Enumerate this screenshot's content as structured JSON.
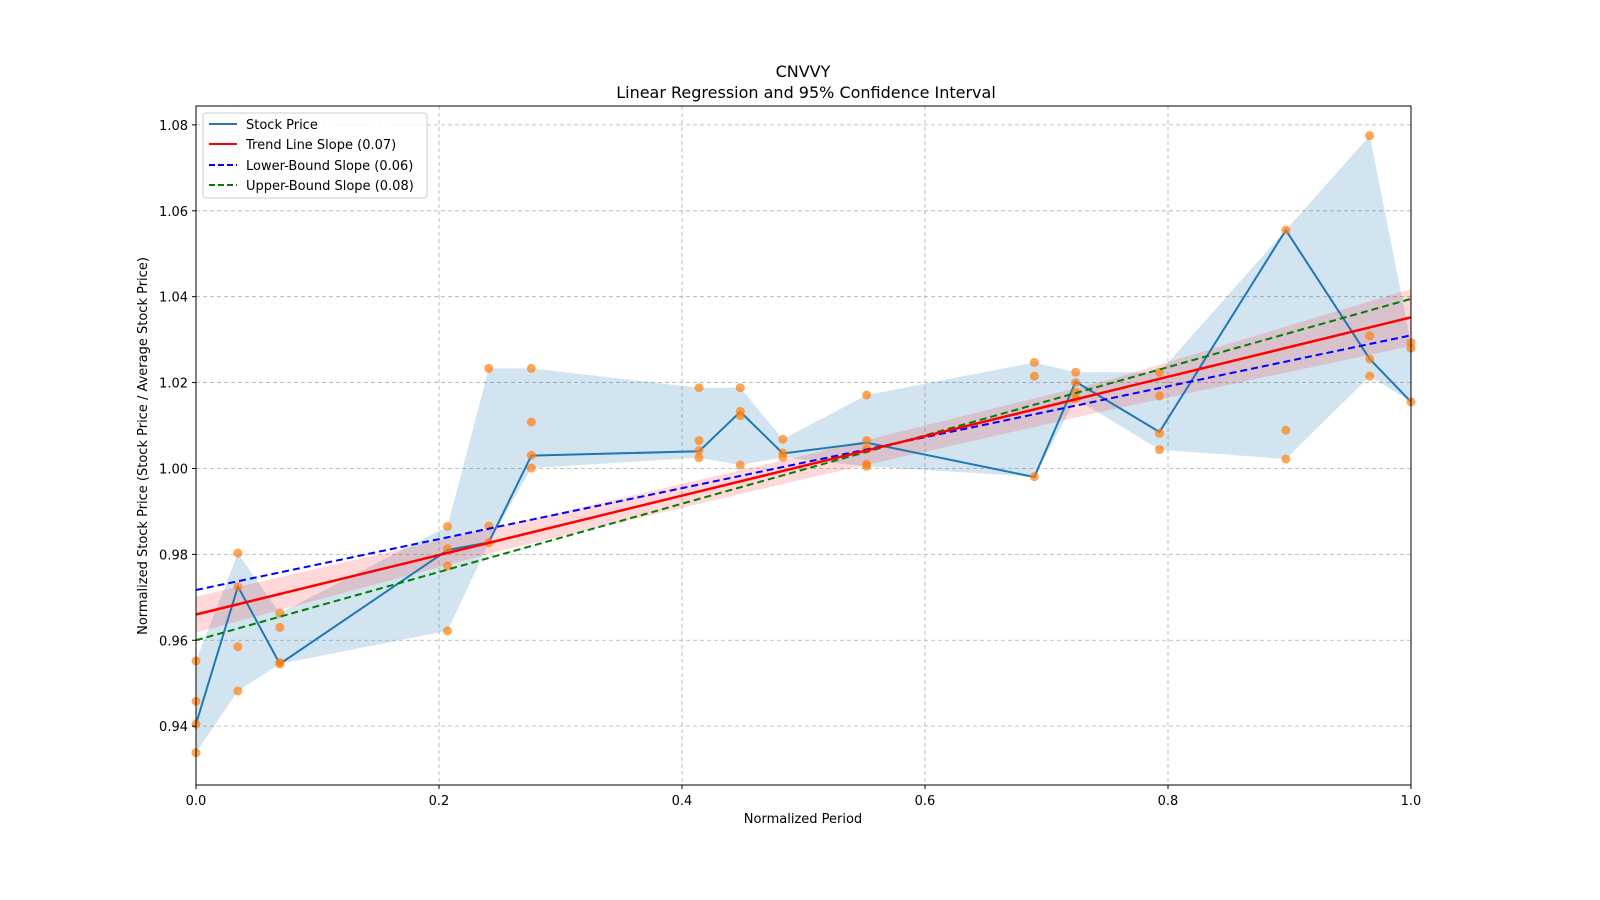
{
  "chart_data": {
    "type": "line",
    "title": "CNVVY",
    "subtitle": "Linear Regression and 95% Confidence Interval",
    "xlabel": "Normalized Period",
    "ylabel": "Normalized Stock Price (Stock Price / Average Stock Price)",
    "xlim": [
      0.0,
      1.0
    ],
    "ylim": [
      0.9263,
      1.0844
    ],
    "grid": true,
    "legend_position": "top-left",
    "x_ticks": [
      "0.0",
      "0.2",
      "0.4",
      "0.6",
      "0.8",
      "1.0"
    ],
    "x_tick_values": [
      0.0,
      0.2,
      0.4,
      0.6,
      0.8,
      1.0
    ],
    "y_ticks": [
      "0.94",
      "0.96",
      "0.98",
      "1.00",
      "1.02",
      "1.04",
      "1.06",
      "1.08"
    ],
    "y_tick_values": [
      0.94,
      0.96,
      0.98,
      1.0,
      1.02,
      1.04,
      1.06,
      1.08
    ],
    "legend": [
      {
        "label": "Stock Price",
        "color": "#1f77b4",
        "style": "solid"
      },
      {
        "label": "Trend Line Slope (0.07)",
        "color": "#ff0000",
        "style": "solid"
      },
      {
        "label": "Lower-Bound Slope (0.06)",
        "color": "#0000ff",
        "style": "dashed"
      },
      {
        "label": "Upper-Bound Slope (0.08)",
        "color": "#008000",
        "style": "dashed"
      }
    ],
    "stock_price_line": {
      "name": "Stock Price",
      "color": "#1f77b4",
      "x": [
        0.0,
        0.0345,
        0.069,
        0.207,
        0.241,
        0.276,
        0.414,
        0.448,
        0.483,
        0.552,
        0.69,
        0.724,
        0.793,
        0.897,
        0.966,
        1.0
      ],
      "y": [
        0.9405,
        0.9725,
        0.9545,
        0.981,
        0.9828,
        1.003,
        1.004,
        1.0132,
        1.0035,
        1.006,
        0.998,
        1.0202,
        1.0085,
        1.0555,
        1.0255,
        1.0155
      ]
    },
    "scatter": {
      "name": "Observations",
      "color": "#ff7f0e",
      "points": [
        {
          "x": 0.0,
          "y": [
            0.9552,
            0.9458,
            0.9405,
            0.9338
          ]
        },
        {
          "x": 0.0345,
          "y": [
            0.9803,
            0.9725,
            0.9585,
            0.9482
          ]
        },
        {
          "x": 0.069,
          "y": [
            0.9663,
            0.963,
            0.9548,
            0.9545
          ]
        },
        {
          "x": 0.207,
          "y": [
            0.9865,
            0.9813,
            0.9773,
            0.9622
          ]
        },
        {
          "x": 0.241,
          "y": [
            1.0233,
            0.9866,
            0.9827
          ]
        },
        {
          "x": 0.276,
          "y": [
            1.0233,
            1.0108,
            1.0031,
            1.0001
          ]
        },
        {
          "x": 0.414,
          "y": [
            1.0188,
            1.0065,
            1.0042,
            1.0025
          ]
        },
        {
          "x": 0.448,
          "y": [
            1.0188,
            1.0133,
            1.0123,
            1.0008
          ]
        },
        {
          "x": 0.483,
          "y": [
            1.0068,
            1.0036,
            1.0026
          ]
        },
        {
          "x": 0.552,
          "y": [
            1.0171,
            1.0065,
            1.0045,
            1.001,
            1.0005
          ]
        },
        {
          "x": 0.69,
          "y": [
            1.0247,
            1.0215,
            0.9981
          ]
        },
        {
          "x": 0.724,
          "y": [
            1.0224,
            1.02,
            1.0177,
            1.0162
          ]
        },
        {
          "x": 0.793,
          "y": [
            1.0224,
            1.0169,
            1.0082,
            1.0044
          ]
        },
        {
          "x": 0.897,
          "y": [
            1.0555,
            1.0089,
            1.0022
          ]
        },
        {
          "x": 0.966,
          "y": [
            1.0775,
            1.0309,
            1.0255,
            1.0215
          ]
        },
        {
          "x": 1.0,
          "y": [
            1.0293,
            1.028,
            1.0155
          ]
        }
      ]
    },
    "range_band": {
      "color": "#1f77b4",
      "opacity": 0.2
    },
    "trend_line": {
      "name": "Trend Line Slope (0.07)",
      "slope": 0.07,
      "x": [
        0.0,
        1.0
      ],
      "y": [
        0.966,
        1.0352
      ],
      "color": "#ff0000"
    },
    "lower_bound_line": {
      "name": "Lower-Bound Slope (0.06)",
      "slope": 0.06,
      "x": [
        0.0,
        1.0
      ],
      "y": [
        0.9717,
        1.031
      ],
      "color": "#0000ff"
    },
    "upper_bound_line": {
      "name": "Upper-Bound Slope (0.08)",
      "slope": 0.08,
      "x": [
        0.0,
        1.0
      ],
      "y": [
        0.96,
        1.0395
      ],
      "color": "#008000"
    },
    "trend_ci_band": {
      "color": "#ff0000",
      "opacity": 0.15,
      "x": [
        0.0,
        0.25,
        0.5,
        0.75,
        1.0
      ],
      "lower": [
        0.9618,
        0.9808,
        0.9975,
        1.0135,
        1.0285
      ],
      "upper": [
        0.9702,
        0.9865,
        1.003,
        1.0205,
        1.0418
      ]
    }
  }
}
